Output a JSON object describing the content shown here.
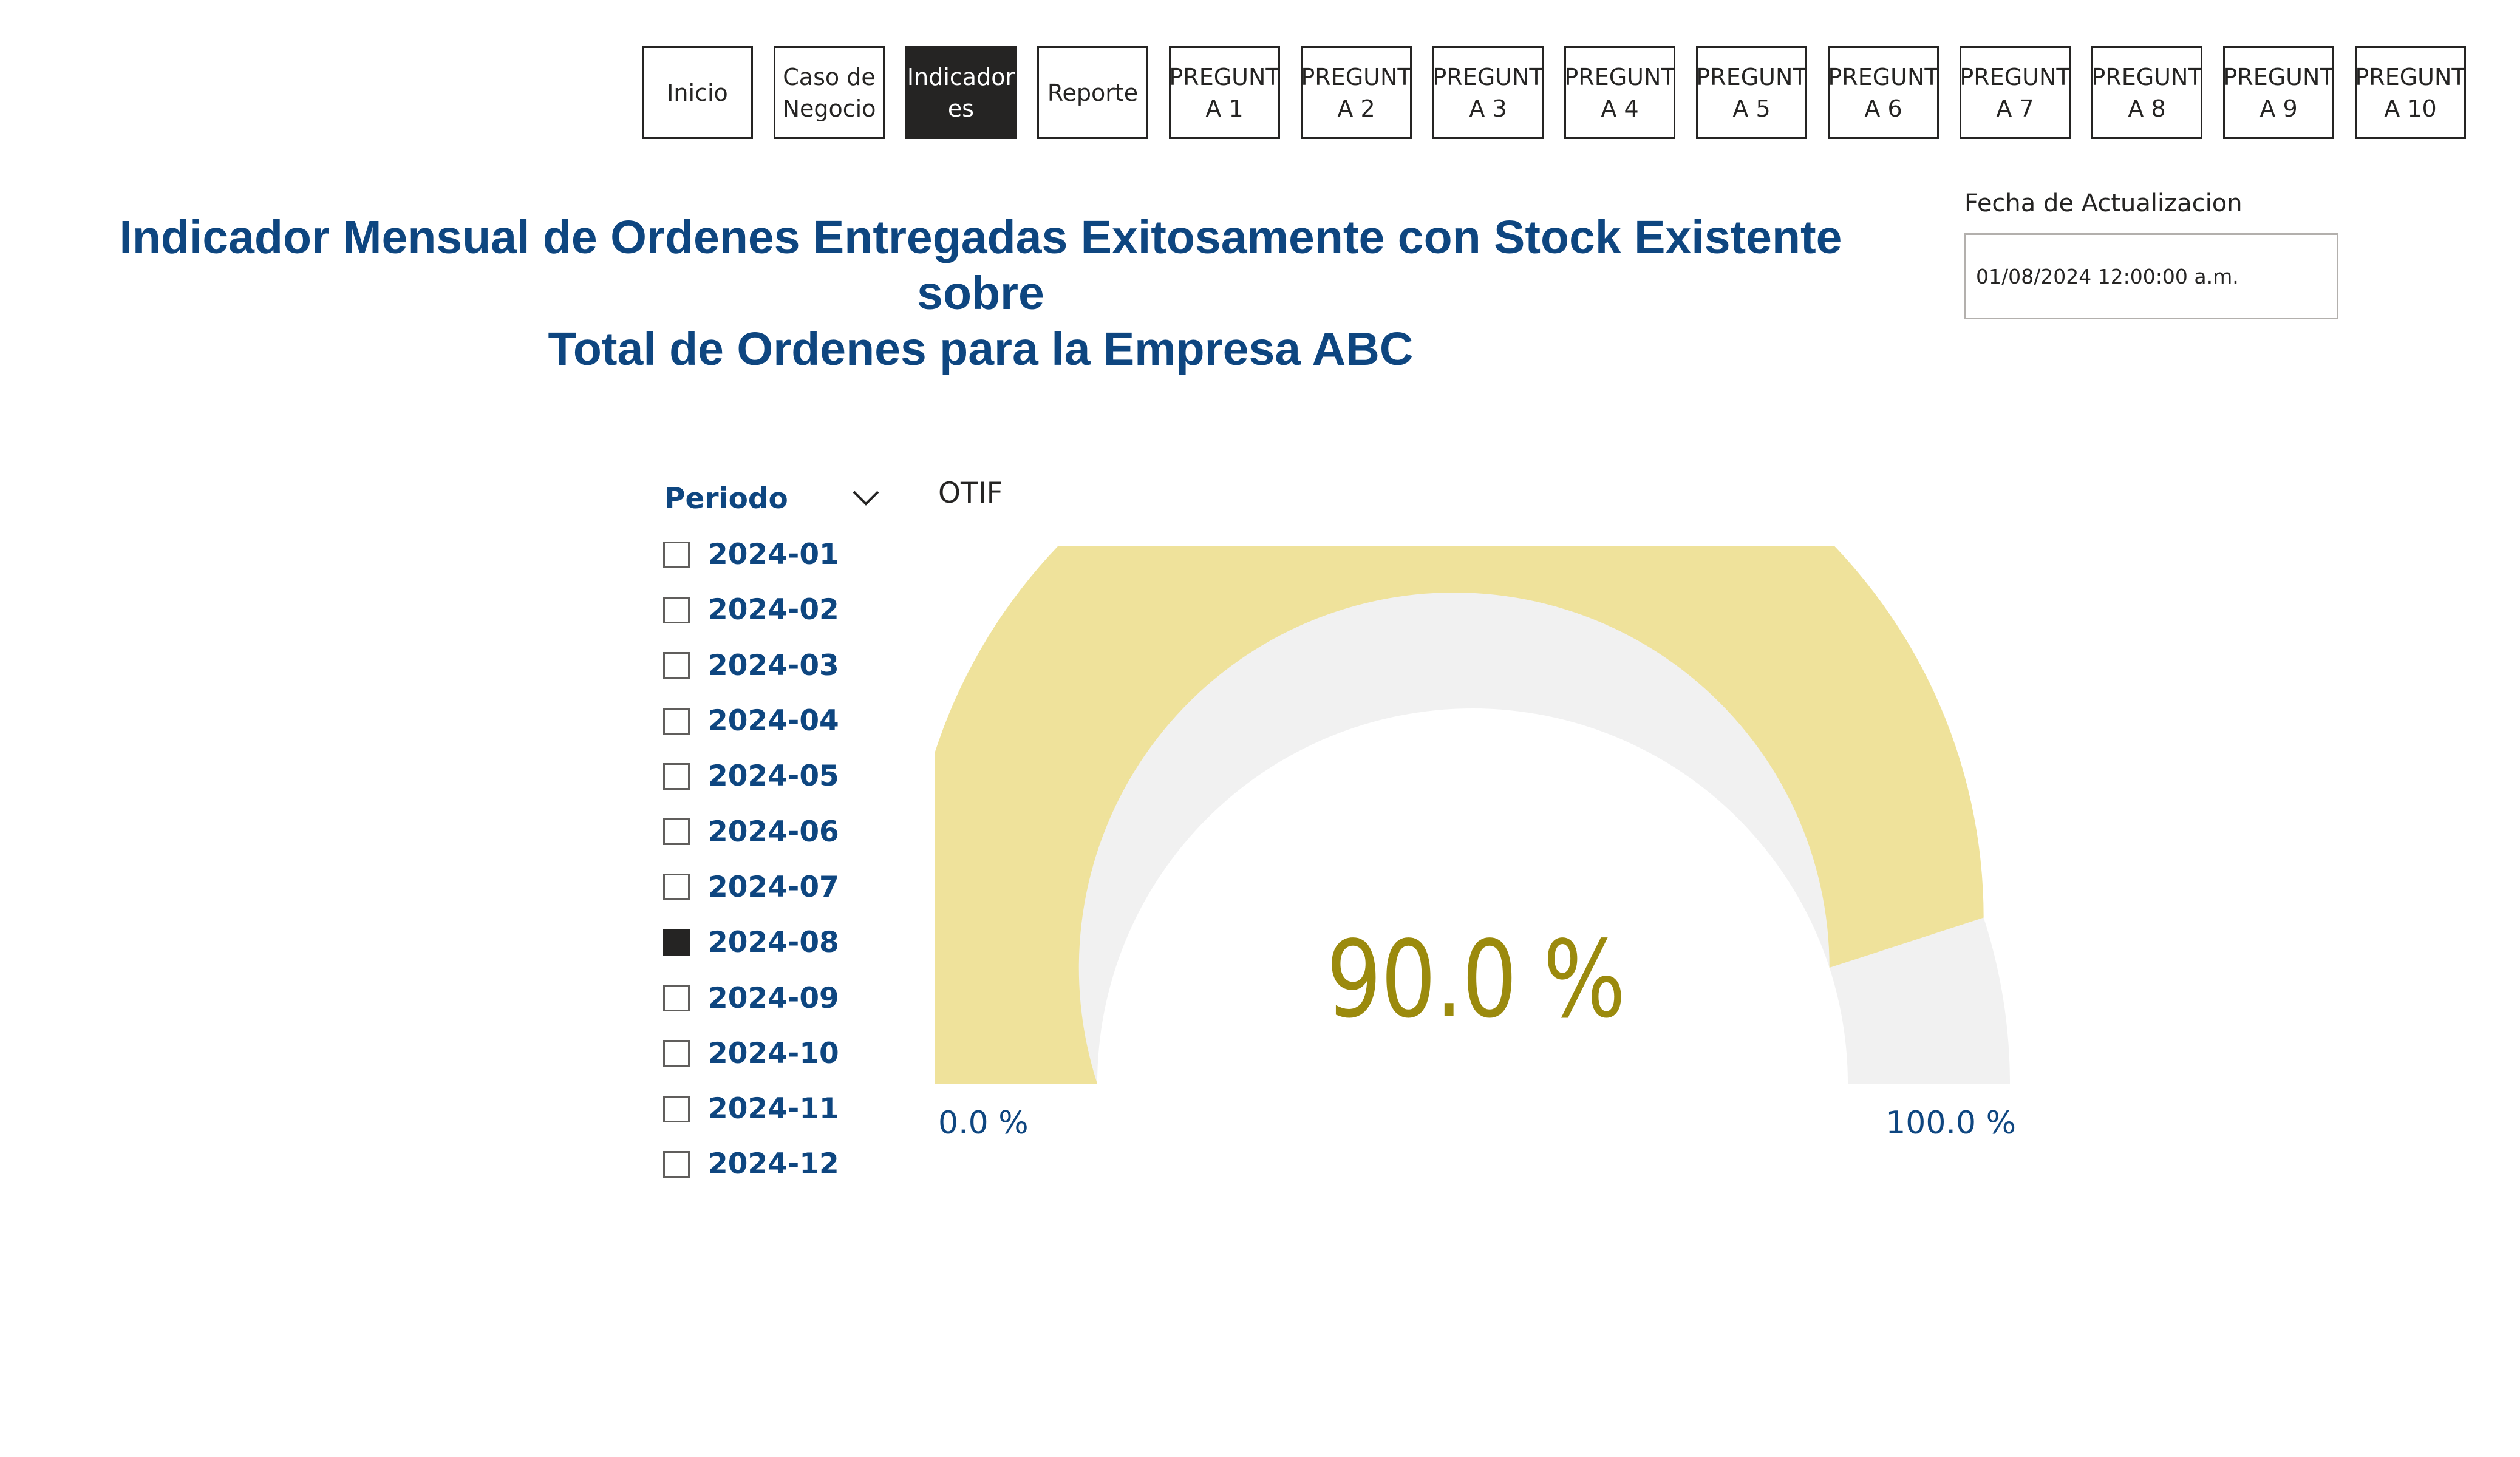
{
  "nav": {
    "buttons": [
      {
        "label": "Inicio",
        "active": false
      },
      {
        "label": "Caso de\nNegocio",
        "active": false
      },
      {
        "label": "Indicador\nes",
        "active": true
      },
      {
        "label": "Reporte",
        "active": false
      },
      {
        "label": "PREGUNT\nA 1",
        "active": false
      },
      {
        "label": "PREGUNT\nA 2",
        "active": false
      },
      {
        "label": "PREGUNT\nA 3",
        "active": false
      },
      {
        "label": "PREGUNT\nA 4",
        "active": false
      },
      {
        "label": "PREGUNT\nA 5",
        "active": false
      },
      {
        "label": "PREGUNT\nA 6",
        "active": false
      },
      {
        "label": "PREGUNT\nA 7",
        "active": false
      },
      {
        "label": "PREGUNT\nA 8",
        "active": false
      },
      {
        "label": "PREGUNT\nA 9",
        "active": false
      },
      {
        "label": "PREGUNT\nA 10",
        "active": false
      }
    ]
  },
  "header": {
    "title_line1": "Indicador Mensual de Ordenes Entregadas Exitosamente con Stock Existente sobre",
    "title_line2": "Total de Ordenes para la Empresa ABC"
  },
  "update": {
    "label": "Fecha de Actualizacion",
    "value": "01/08/2024 12:00:00 a.m."
  },
  "slicer": {
    "title": "Periodo",
    "items": [
      {
        "label": "2024-01",
        "checked": false
      },
      {
        "label": "2024-02",
        "checked": false
      },
      {
        "label": "2024-03",
        "checked": false
      },
      {
        "label": "2024-04",
        "checked": false
      },
      {
        "label": "2024-05",
        "checked": false
      },
      {
        "label": "2024-06",
        "checked": false
      },
      {
        "label": "2024-07",
        "checked": false
      },
      {
        "label": "2024-08",
        "checked": true
      },
      {
        "label": "2024-09",
        "checked": false
      },
      {
        "label": "2024-10",
        "checked": false
      },
      {
        "label": "2024-11",
        "checked": false
      },
      {
        "label": "2024-12",
        "checked": false
      }
    ]
  },
  "gauge": {
    "title": "OTIF",
    "value_label": "90.0 %",
    "min_label": "0.0 %",
    "max_label": "100.0 %"
  },
  "chart_data": {
    "type": "gauge",
    "title": "OTIF",
    "value": 90.0,
    "min": 0.0,
    "max": 100.0,
    "unit": "%"
  },
  "colors": {
    "gauge_fill": "#efe29b",
    "gauge_track": "#f1f1f1",
    "value_text": "#9b8a0d",
    "brand_blue": "#0e4680",
    "active_nav": "#252423"
  },
  "icons": {
    "slicer_chevron": "chevron-down-icon"
  }
}
